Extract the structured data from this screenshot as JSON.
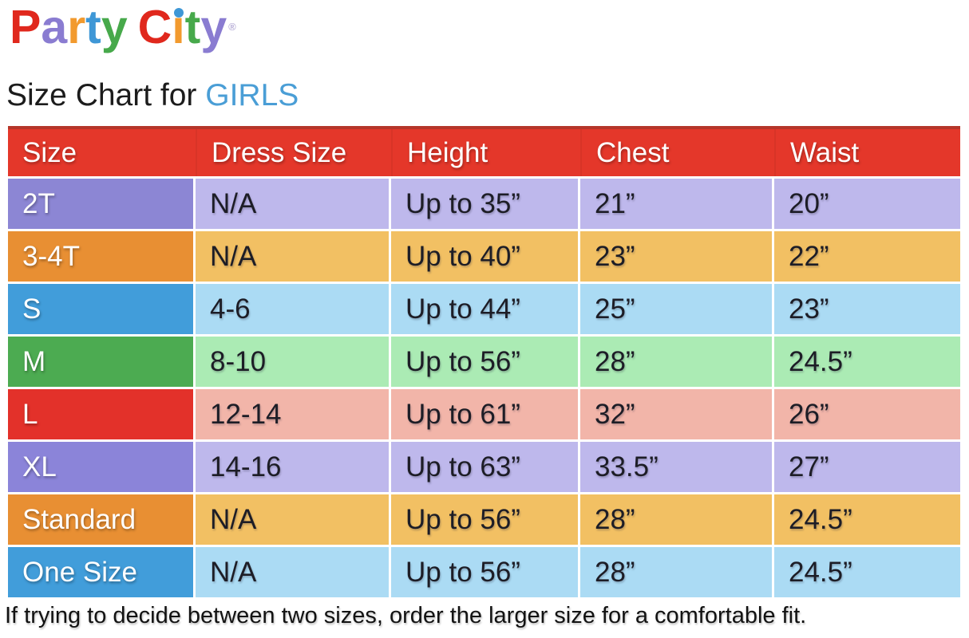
{
  "logo": {
    "letters": [
      {
        "ch": "P",
        "color": "#e0281d"
      },
      {
        "ch": "a",
        "color": "#8a7cd1"
      },
      {
        "ch": "r",
        "color": "#f29a2e"
      },
      {
        "ch": "t",
        "color": "#3e97d6"
      },
      {
        "ch": "y",
        "color": "#47a94b"
      },
      {
        "ch": "C",
        "color": "#e0281d"
      },
      {
        "ch": "ı",
        "color": "#f29a2e"
      },
      {
        "ch": "t",
        "color": "#47a94b"
      },
      {
        "ch": "y",
        "color": "#8a7cd1"
      }
    ],
    "i_dot": {
      "color": "#3e97d6"
    },
    "trademark": "®"
  },
  "title": {
    "prefix": "Size Chart for ",
    "highlight": "GIRLS",
    "color": "#4a9ed6"
  },
  "chart_data": {
    "type": "table",
    "title": "Size Chart for GIRLS",
    "columns": [
      "Size",
      "Dress Size",
      "Height",
      "Chest",
      "Waist"
    ],
    "rows": [
      [
        "2T",
        "N/A",
        "Up to 35”",
        "21”",
        "20”"
      ],
      [
        "3-4T",
        "N/A",
        "Up to 40”",
        "23”",
        "22”"
      ],
      [
        "S",
        "4-6",
        "Up to 44”",
        "25”",
        "23”"
      ],
      [
        "M",
        "8-10",
        "Up to 56”",
        "28”",
        "24.5”"
      ],
      [
        "L",
        "12-14",
        "Up to 61”",
        "32”",
        "26”"
      ],
      [
        "XL",
        "14-16",
        "Up to 63”",
        "33.5”",
        "27”"
      ],
      [
        "Standard",
        "N/A",
        "Up to 56”",
        "28”",
        "24.5”"
      ],
      [
        "One Size",
        "N/A",
        "Up to 56”",
        "28”",
        "24.5”"
      ]
    ],
    "footnote": "If trying to decide between two sizes, order the larger size for a comfortable fit."
  },
  "styles": {
    "header": {
      "color": "#e4372a"
    },
    "row_colors": [
      {
        "color": "#8c86d4",
        "tint": "#beb8ec"
      },
      {
        "color": "#e88f33",
        "tint": "#f2c063"
      },
      {
        "color": "#419dda",
        "tint": "#abdbf4"
      },
      {
        "color": "#4cab51",
        "tint": "#abebb4"
      },
      {
        "color": "#e3312a",
        "tint": "#f2b5a9"
      },
      {
        "color": "#8b84d9",
        "tint": "#beb8ec"
      },
      {
        "color": "#e88f33",
        "tint": "#f2c063"
      },
      {
        "color": "#419dda",
        "tint": "#abdbf4"
      }
    ]
  }
}
